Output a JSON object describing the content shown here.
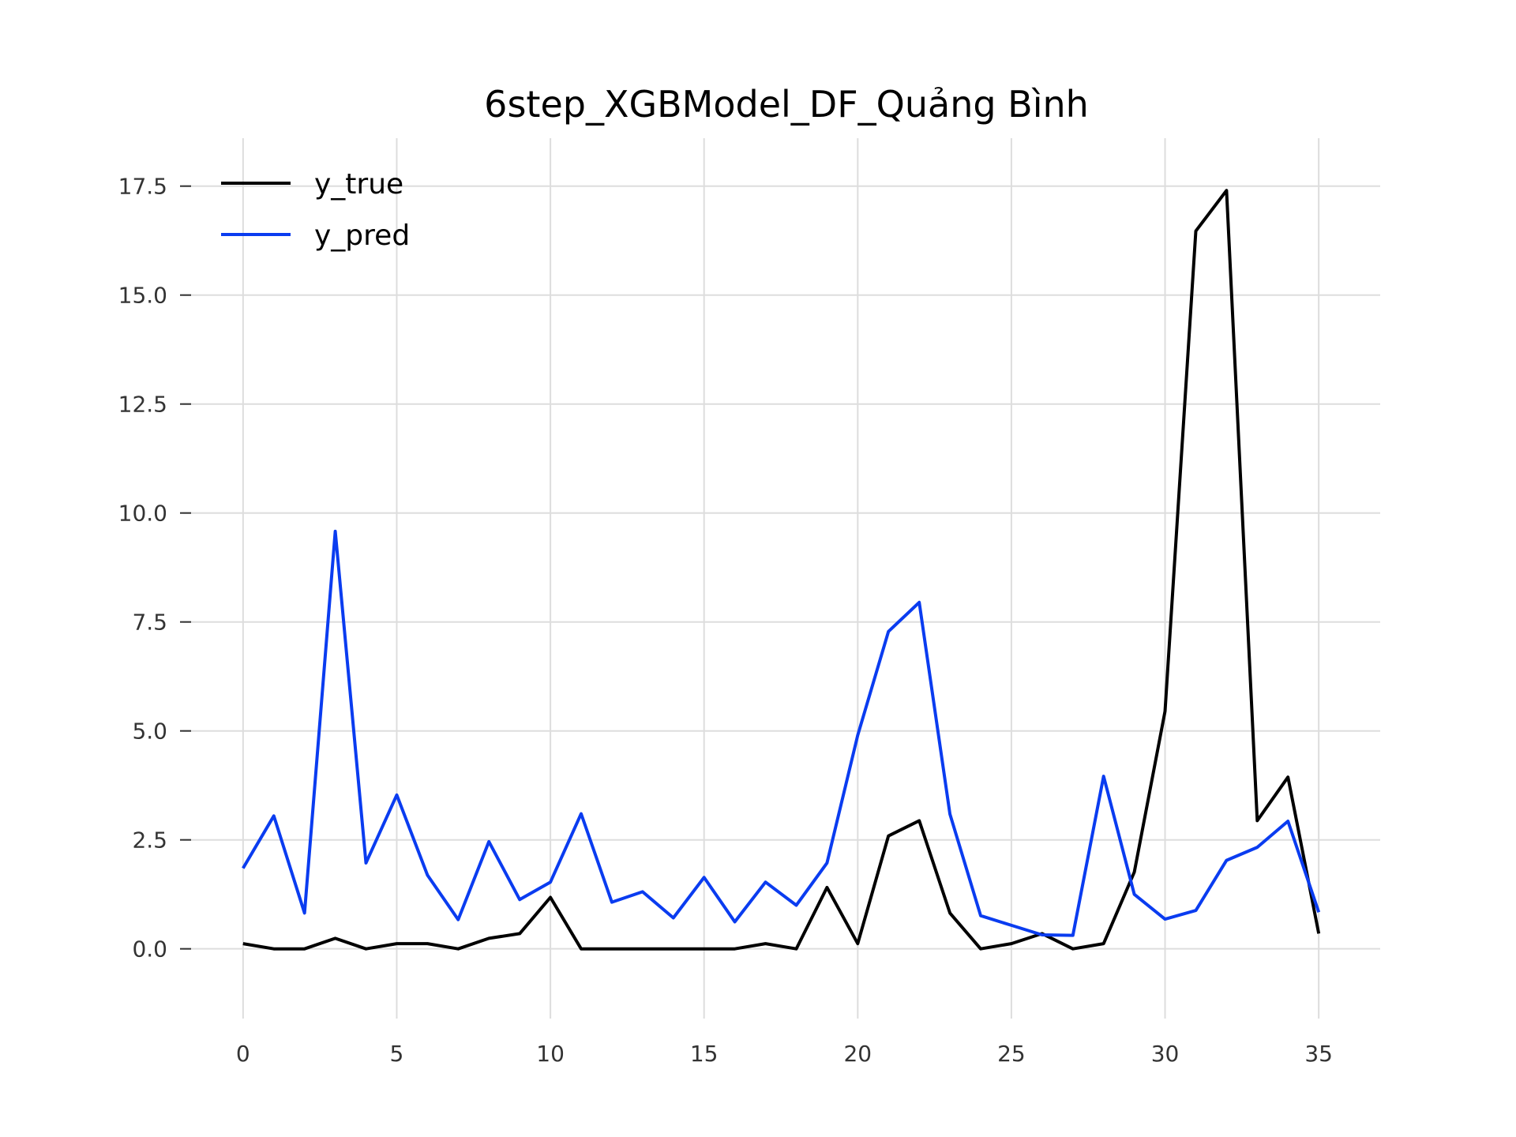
{
  "chart_data": {
    "type": "line",
    "title": "6step_XGBModel_DF_Quảng Bình",
    "xlabel": "",
    "ylabel": "",
    "xlim": [
      -2,
      37
    ],
    "ylim": [
      -1.6,
      18.6
    ],
    "xticks": [
      0,
      5,
      10,
      15,
      20,
      25,
      30,
      35
    ],
    "yticks": [
      0.0,
      2.5,
      5.0,
      7.5,
      10.0,
      12.5,
      15.0,
      17.5
    ],
    "ytick_labels": [
      "0.0",
      "2.5",
      "5.0",
      "7.5",
      "10.0",
      "12.5",
      "15.0",
      "17.5"
    ],
    "grid": true,
    "legend_position": "top-left",
    "x": [
      0,
      1,
      2,
      3,
      4,
      5,
      6,
      7,
      8,
      9,
      10,
      11,
      12,
      13,
      14,
      15,
      16,
      17,
      18,
      19,
      20,
      21,
      22,
      23,
      24,
      25,
      26,
      27,
      28,
      29,
      30,
      31,
      32,
      33,
      34,
      35
    ],
    "series": [
      {
        "name": "y_true",
        "color": "#000000",
        "values": [
          0.12,
          0.0,
          0.0,
          0.24,
          0.0,
          0.12,
          0.12,
          0.0,
          0.24,
          0.35,
          1.18,
          0.0,
          0.0,
          0.0,
          0.0,
          0.0,
          0.0,
          0.12,
          0.0,
          1.41,
          0.12,
          2.59,
          2.94,
          0.82,
          0.0,
          0.12,
          0.35,
          0.0,
          0.12,
          1.76,
          5.45,
          16.47,
          17.4,
          2.94,
          3.94,
          0.35
        ]
      },
      {
        "name": "y_pred",
        "color": "#0a3cf0",
        "values": [
          1.85,
          3.05,
          0.82,
          9.58,
          1.97,
          3.53,
          1.69,
          0.67,
          2.46,
          1.13,
          1.53,
          3.1,
          1.07,
          1.31,
          0.71,
          1.64,
          0.62,
          1.53,
          1.0,
          1.97,
          4.9,
          7.28,
          7.95,
          3.09,
          0.76,
          0.54,
          0.32,
          0.31,
          3.96,
          1.25,
          0.68,
          0.88,
          2.03,
          2.33,
          2.93,
          0.84
        ]
      }
    ]
  }
}
